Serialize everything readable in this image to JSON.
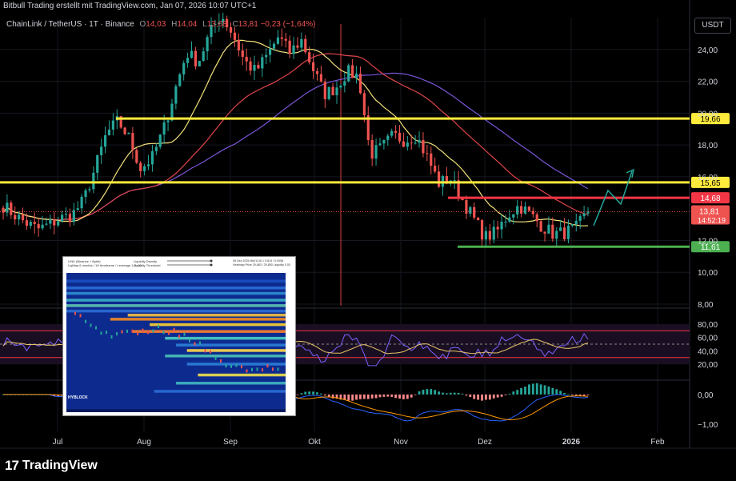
{
  "header": {
    "attribution": "Bitbull Trading erstellt mit TradingView.com, Jan 07, 2026 10:07 UTC+1"
  },
  "symbol": {
    "name": "ChainLink / TetherUS · 1T · Binance",
    "o_label": "O",
    "o": "14,03",
    "h_label": "H",
    "h": "14,04",
    "l_label": "L",
    "l": "13,68",
    "c_label": "C",
    "c": "13,81",
    "change": "−0,23 (−1,64%)"
  },
  "currency_button": "USDT",
  "brand": {
    "logo_mark": "17",
    "name": "TradingView"
  },
  "colors": {
    "background": "#000000",
    "candle_up": "#26a69a",
    "candle_down": "#ef5350",
    "ma_fast": "#f5e27a",
    "ma_slow": "#e0454a",
    "ma_long": "#7b56d9",
    "level_yellow": "#ffeb3b",
    "level_red": "#f23645",
    "level_green": "#4caf50",
    "rsi": "#7b61ff",
    "rsi_ma": "#e9c46a"
  },
  "chart_data": {
    "type": "candlestick",
    "price_axis": {
      "ticks": [
        "24,00",
        "22,00",
        "20,00",
        "18,00",
        "16,00",
        "12,00",
        "10,00",
        "8,00"
      ],
      "range": [
        8,
        26
      ]
    },
    "time_axis": {
      "ticks": [
        "Jul",
        "Aug",
        "Sep",
        "Okt",
        "Nov",
        "Dez",
        "2026",
        "Feb"
      ]
    },
    "horizontal_levels": [
      {
        "value": 19.66,
        "label": "19,66",
        "color": "#ffeb3b"
      },
      {
        "value": 15.65,
        "label": "15,65",
        "color": "#ffeb3b"
      },
      {
        "value": 14.68,
        "label": "14,68",
        "color": "#f23645"
      },
      {
        "value": 11.61,
        "label": "11,61",
        "color": "#4caf50"
      }
    ],
    "last_price": {
      "value": 13.81,
      "label": "13,81",
      "countdown": "14:52:19"
    },
    "close_path": [
      [
        "Jun",
        14.2
      ],
      [
        "Jun",
        13.6
      ],
      [
        "Jun",
        13.1
      ],
      [
        "Jun",
        12.7
      ],
      [
        "Jul",
        13.0
      ],
      [
        "Jul",
        13.4
      ],
      [
        "Jul",
        13.6
      ],
      [
        "Jul",
        14.5
      ],
      [
        "Jul",
        16.5
      ],
      [
        "Jul",
        18.7
      ],
      [
        "Jul",
        19.5
      ],
      [
        "Jul",
        18.4
      ],
      [
        "Jul",
        16.5
      ],
      [
        "Jul",
        17.2
      ],
      [
        "Aug",
        19.0
      ],
      [
        "Aug",
        21.5
      ],
      [
        "Aug",
        23.8
      ],
      [
        "Aug",
        23.2
      ],
      [
        "Aug",
        25.0
      ],
      [
        "Aug",
        26.2
      ],
      [
        "Aug",
        25.0
      ],
      [
        "Sep",
        23.3
      ],
      [
        "Sep",
        22.6
      ],
      [
        "Sep",
        23.6
      ],
      [
        "Sep",
        24.8
      ],
      [
        "Sep",
        23.8
      ],
      [
        "Sep",
        24.6
      ],
      [
        "Sep",
        22.8
      ],
      [
        "Sep",
        21.2
      ],
      [
        "Okt",
        21.6
      ],
      [
        "Okt",
        22.6
      ],
      [
        "Okt",
        22.3
      ],
      [
        "Okt",
        17.4
      ],
      [
        "Okt",
        17.8
      ],
      [
        "Okt",
        18.6
      ],
      [
        "Okt",
        18.3
      ],
      [
        "Okt",
        18.6
      ],
      [
        "Nov",
        17.2
      ],
      [
        "Nov",
        15.6
      ],
      [
        "Nov",
        15.9
      ],
      [
        "Nov",
        14.6
      ],
      [
        "Nov",
        13.4
      ],
      [
        "Nov",
        12.2
      ],
      [
        "Nov",
        12.5
      ],
      [
        "Dez",
        13.6
      ],
      [
        "Dez",
        14.2
      ],
      [
        "Dez",
        13.6
      ],
      [
        "Dez",
        12.9
      ],
      [
        "Dez",
        12.4
      ],
      [
        "Dez",
        12.5
      ],
      [
        "2026",
        12.8
      ],
      [
        "2026",
        13.8
      ]
    ],
    "rsi": {
      "ticks": [
        "80,00",
        "60,00",
        "40,00",
        "20,00"
      ],
      "range": [
        0,
        100
      ],
      "overbought": 70,
      "midline": 50,
      "oversold": 30
    },
    "macd": {
      "ticks": [
        "0,00",
        "−1,00"
      ],
      "range": [
        -1.4,
        0.4
      ]
    }
  },
  "inset": {
    "title": "LINK (Binance + Bybit)",
    "subtitle": "LiqMap 6 months / 1H timeframe / Leverage 1-5, 10",
    "control1": "Liquidity Density",
    "control2": "Liquidity Threshold",
    "info1": "08 Dez 2025 Mid/13.81 / 9.814 / 0.0058",
    "info2": "Heatmap Price 29,883 / 29,850 Liquidity 0.00",
    "watermark": "HYBLOCK"
  }
}
